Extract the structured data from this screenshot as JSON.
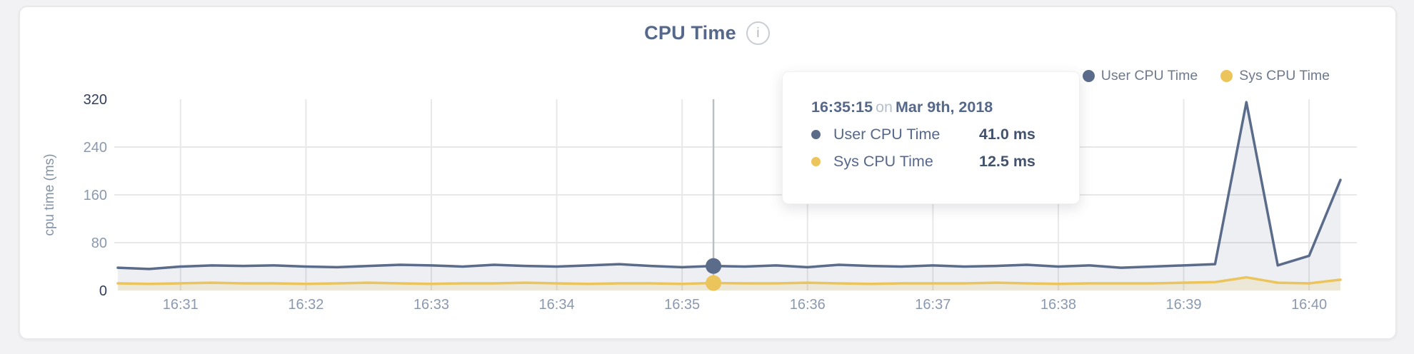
{
  "header": {
    "title": "CPU Time",
    "info_icon": "i"
  },
  "legend": {
    "items": [
      {
        "label": "User CPU Time",
        "color": "#5b6b8a"
      },
      {
        "label": "Sys CPU Time",
        "color": "#ecc45c"
      }
    ]
  },
  "tooltip": {
    "time": "16:35:15",
    "connector": "on",
    "date": "Mar 9th, 2018",
    "rows": [
      {
        "label": "User CPU Time",
        "value": "41.0 ms",
        "color": "#5b6b8a"
      },
      {
        "label": "Sys CPU Time",
        "value": "12.5 ms",
        "color": "#ecc45c"
      }
    ]
  },
  "chart_data": {
    "type": "area",
    "title": "CPU Time",
    "ylabel": "cpu time (ms)",
    "xlabel": "",
    "ylim": [
      0,
      320
    ],
    "grid": true,
    "legend_position": "top-right",
    "x_start_time": "16:30:30",
    "point_interval_seconds": 15,
    "x_ticks": [
      {
        "label": "16:31",
        "seconds_from_1630": 60
      },
      {
        "label": "16:32",
        "seconds_from_1630": 120
      },
      {
        "label": "16:33",
        "seconds_from_1630": 180
      },
      {
        "label": "16:34",
        "seconds_from_1630": 240
      },
      {
        "label": "16:35",
        "seconds_from_1630": 300
      },
      {
        "label": "16:36",
        "seconds_from_1630": 360
      },
      {
        "label": "16:37",
        "seconds_from_1630": 420
      },
      {
        "label": "16:38",
        "seconds_from_1630": 480
      },
      {
        "label": "16:39",
        "seconds_from_1630": 540
      },
      {
        "label": "16:40",
        "seconds_from_1630": 600
      }
    ],
    "y_ticks": [
      {
        "value": 0,
        "label": "0",
        "emphasis": true,
        "gridline": false
      },
      {
        "value": 80,
        "label": "80",
        "emphasis": false,
        "gridline": true
      },
      {
        "value": 160,
        "label": "160",
        "emphasis": false,
        "gridline": true
      },
      {
        "value": 240,
        "label": "240",
        "emphasis": false,
        "gridline": true
      },
      {
        "value": 320,
        "label": "320",
        "emphasis": true,
        "gridline": false
      }
    ],
    "series": [
      {
        "name": "User CPU Time",
        "color": "#5b6b8a",
        "fill": "rgba(91,107,138,0.11)",
        "unit": "ms",
        "values": [
          38,
          36,
          40,
          42,
          41,
          42,
          40,
          39,
          41,
          43,
          42,
          40,
          43,
          41,
          40,
          42,
          44,
          41,
          39,
          41,
          40,
          42,
          39,
          43,
          41,
          40,
          42,
          40,
          41,
          43,
          40,
          42,
          38,
          40,
          42,
          44,
          315,
          42,
          58,
          185
        ]
      },
      {
        "name": "Sys CPU Time",
        "color": "#ecc45c",
        "fill": "rgba(236,196,92,0.18)",
        "unit": "ms",
        "values": [
          12,
          11,
          12,
          13,
          12,
          12,
          11,
          12,
          13,
          12,
          11,
          12,
          12,
          13,
          12,
          11,
          12,
          12,
          11,
          12.5,
          12,
          12,
          13,
          12,
          11,
          12,
          12,
          12,
          13,
          12,
          11,
          12,
          12,
          12,
          13,
          14,
          22,
          13,
          12,
          18
        ]
      }
    ],
    "highlight": {
      "index": 19,
      "time": "16:35:15",
      "date": "Mar 9th, 2018",
      "user_value_ms": 41.0,
      "sys_value_ms": 12.5
    },
    "colors": {
      "gridline": "#e8e8ea",
      "crosshair": "#bcbec2",
      "tick_label": "#8b99af",
      "tick_label_emphasis": "#333f5a",
      "axis_title": "#8494a8"
    }
  }
}
